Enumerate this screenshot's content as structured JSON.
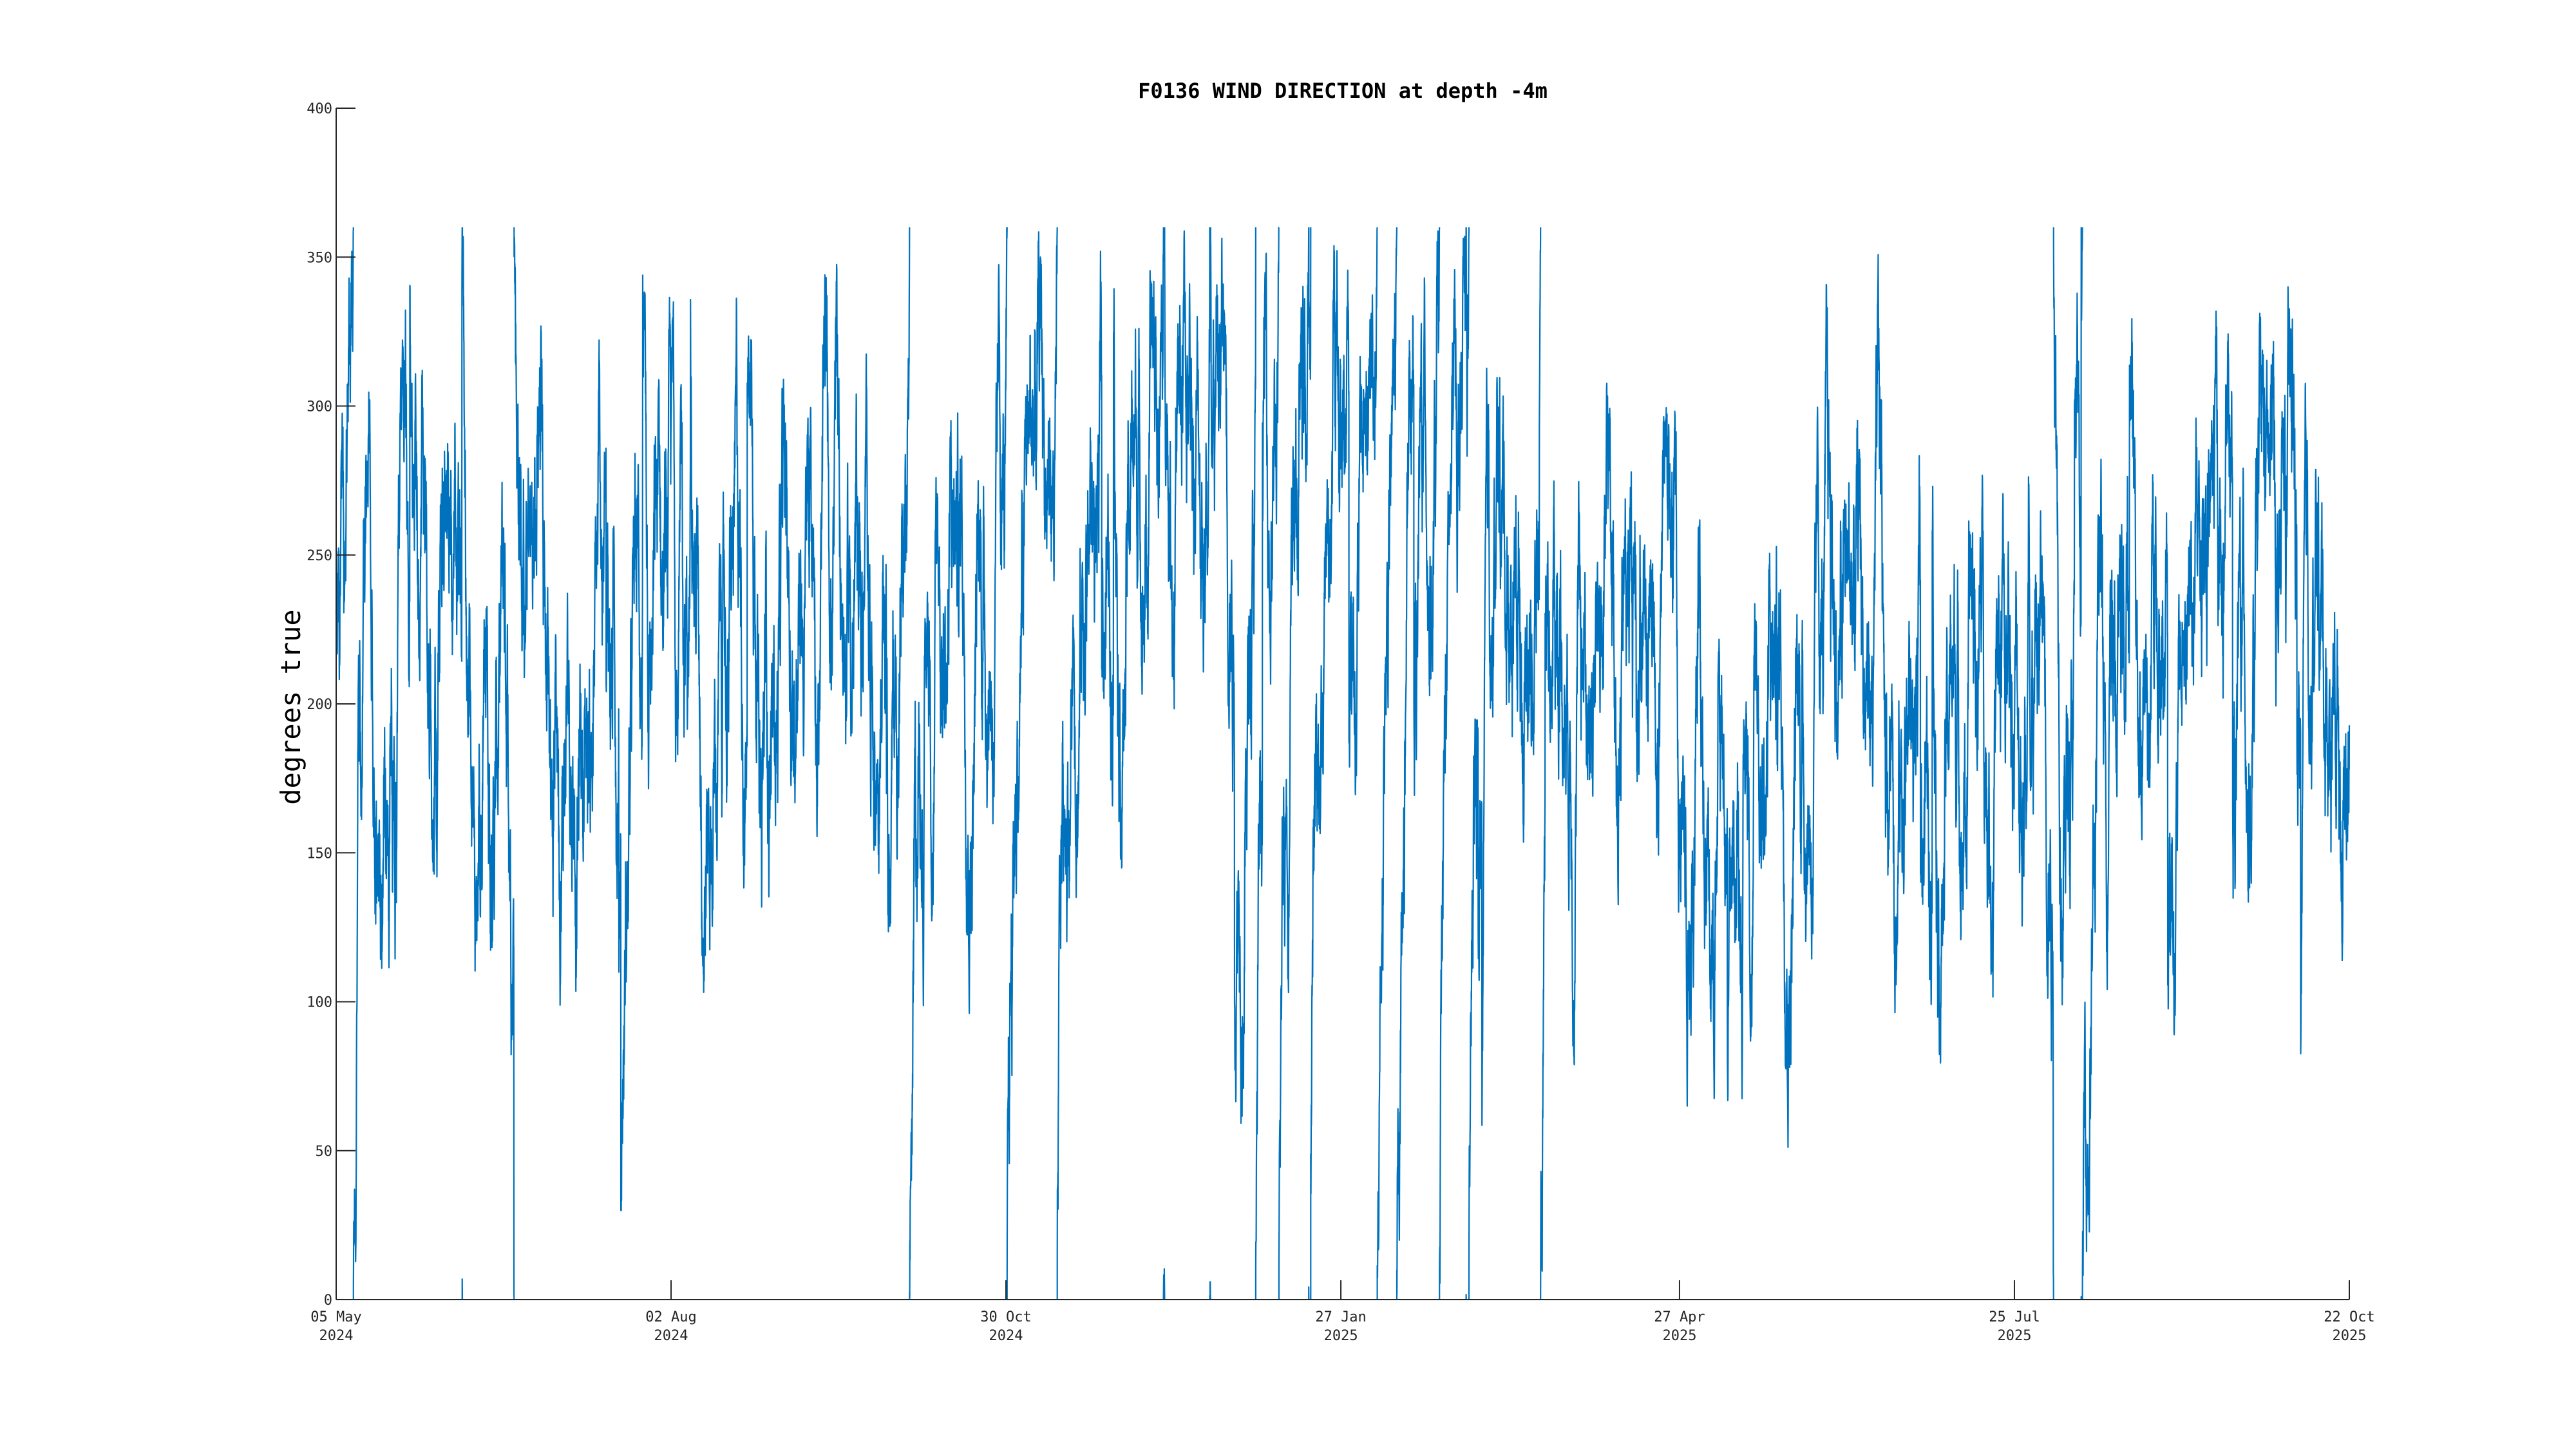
{
  "chart_data": {
    "type": "line",
    "title": "F0136 WIND DIRECTION at depth -4m",
    "xlabel": "",
    "ylabel": "degrees true",
    "ylim": [
      0,
      400
    ],
    "yticks": [
      0,
      50,
      100,
      150,
      200,
      250,
      300,
      350,
      400
    ],
    "xlim": [
      "2024-05-05",
      "2025-10-22"
    ],
    "xticks": [
      {
        "date": "2024-05-05",
        "day": "05 May",
        "year": "2024"
      },
      {
        "date": "2024-08-02",
        "day": "02 Aug",
        "year": "2024"
      },
      {
        "date": "2024-10-30",
        "day": "30 Oct",
        "year": "2024"
      },
      {
        "date": "2025-01-27",
        "day": "27 Jan",
        "year": "2025"
      },
      {
        "date": "2025-04-27",
        "day": "27 Apr",
        "year": "2025"
      },
      {
        "date": "2025-07-25",
        "day": "25 Jul",
        "year": "2025"
      },
      {
        "date": "2025-10-22",
        "day": "22 Oct",
        "year": "2025"
      }
    ],
    "grid": false,
    "legend": "none",
    "color": "#0072BD",
    "series": [
      {
        "x_start": "2024-05-05",
        "x_end": "2025-10-22",
        "sampling": "hourly",
        "values_range": [
          0,
          360
        ],
        "monthly_typical": [
          {
            "month": "2024-05",
            "typical": 215
          },
          {
            "month": "2024-06",
            "typical": 215
          },
          {
            "month": "2024-07",
            "typical": 220
          },
          {
            "month": "2024-08",
            "typical": 215
          },
          {
            "month": "2024-09",
            "typical": 235
          },
          {
            "month": "2024-10",
            "typical": 260
          },
          {
            "month": "2024-11",
            "typical": 280
          },
          {
            "month": "2024-12",
            "typical": 300
          },
          {
            "month": "2025-01",
            "typical": 305
          },
          {
            "month": "2025-02",
            "typical": 300
          },
          {
            "month": "2025-03",
            "typical": 265
          },
          {
            "month": "2025-04",
            "typical": 230
          },
          {
            "month": "2025-05",
            "typical": 215
          },
          {
            "month": "2025-06",
            "typical": 210
          },
          {
            "month": "2025-07",
            "typical": 215
          },
          {
            "month": "2025-08",
            "typical": 210
          },
          {
            "month": "2025-09",
            "typical": 225
          },
          {
            "month": "2025-10",
            "typical": 225
          }
        ]
      }
    ]
  }
}
